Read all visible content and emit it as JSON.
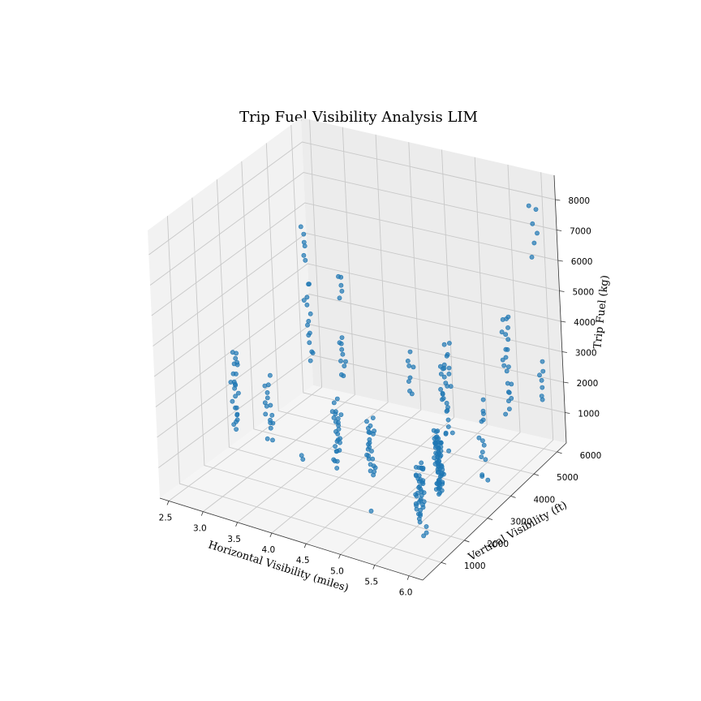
{
  "chart_data": {
    "type": "scatter",
    "projection": "3d",
    "title": "Trip Fuel Visibility Analysis LIM",
    "xlabel": "Horizontal Visibility (miles)",
    "ylabel": "Vertical Visibility (ft)",
    "zlabel": "Trip Fuel (kg)",
    "xlim": [
      2.37,
      6.2
    ],
    "ylim": [
      200,
      6400
    ],
    "zlim": [
      0,
      8800
    ],
    "x_ticks": [
      "2.5",
      "3.0",
      "3.5",
      "4.0",
      "4.5",
      "5.0",
      "5.5",
      "6.0"
    ],
    "y_ticks": [
      "1000",
      "2000",
      "3000",
      "4000",
      "5000",
      "6000"
    ],
    "z_ticks": [
      "1000",
      "2000",
      "3000",
      "4000",
      "5000",
      "6000",
      "7000",
      "8000"
    ],
    "grid": true,
    "marker_color": "#1f77b4",
    "clusters": [
      {
        "x": 2.5,
        "y": 6000,
        "z": [
          900,
          3800
        ],
        "n": 14
      },
      {
        "x": 2.5,
        "y": 6000,
        "z": [
          4300,
          5600
        ],
        "n": 6
      },
      {
        "x": 3.0,
        "y": 6000,
        "z": [
          800,
          2200
        ],
        "n": 10
      },
      {
        "x": 3.0,
        "y": 6000,
        "z": [
          3400,
          4300
        ],
        "n": 5
      },
      {
        "x": 4.0,
        "y": 6000,
        "z": [
          700,
          2200
        ],
        "n": 8
      },
      {
        "x": 4.5,
        "y": 6000,
        "z": [
          600,
          2000
        ],
        "n": 10
      },
      {
        "x": 5.5,
        "y": 6000,
        "z": [
          800,
          4300
        ],
        "n": 22
      },
      {
        "x": 6.0,
        "y": 6000,
        "z": [
          1500,
          2800
        ],
        "n": 7
      },
      {
        "x": 6.0,
        "y": 6000,
        "z": [
          6300,
          8200
        ],
        "n": 6
      },
      {
        "x": 2.5,
        "y": 3000,
        "z": [
          600,
          3300
        ],
        "n": 24
      },
      {
        "x": 3.0,
        "y": 3000,
        "z": [
          500,
          2800
        ],
        "n": 16
      },
      {
        "x": 4.0,
        "y": 3000,
        "z": [
          300,
          2600
        ],
        "n": 26
      },
      {
        "x": 4.5,
        "y": 3000,
        "z": [
          300,
          2300
        ],
        "n": 24
      },
      {
        "x": 5.5,
        "y": 3000,
        "z": [
          300,
          2500
        ],
        "n": 70
      },
      {
        "x": 5.5,
        "y": 2200,
        "z": [
          100,
          2000
        ],
        "n": 40
      },
      {
        "x": 5.5,
        "y": 3500,
        "z": [
          1500,
          5200
        ],
        "n": 20
      },
      {
        "x": 6.0,
        "y": 3500,
        "z": [
          500,
          3500
        ],
        "n": 14
      },
      {
        "x": 5.0,
        "y": 1500,
        "z": [
          400,
          600
        ],
        "n": 1
      },
      {
        "x": 3.5,
        "y": 3000,
        "z": [
          300,
          500
        ],
        "n": 2
      },
      {
        "x": 5.8,
        "y": 1500,
        "z": [
          200,
          500
        ],
        "n": 3
      }
    ]
  }
}
